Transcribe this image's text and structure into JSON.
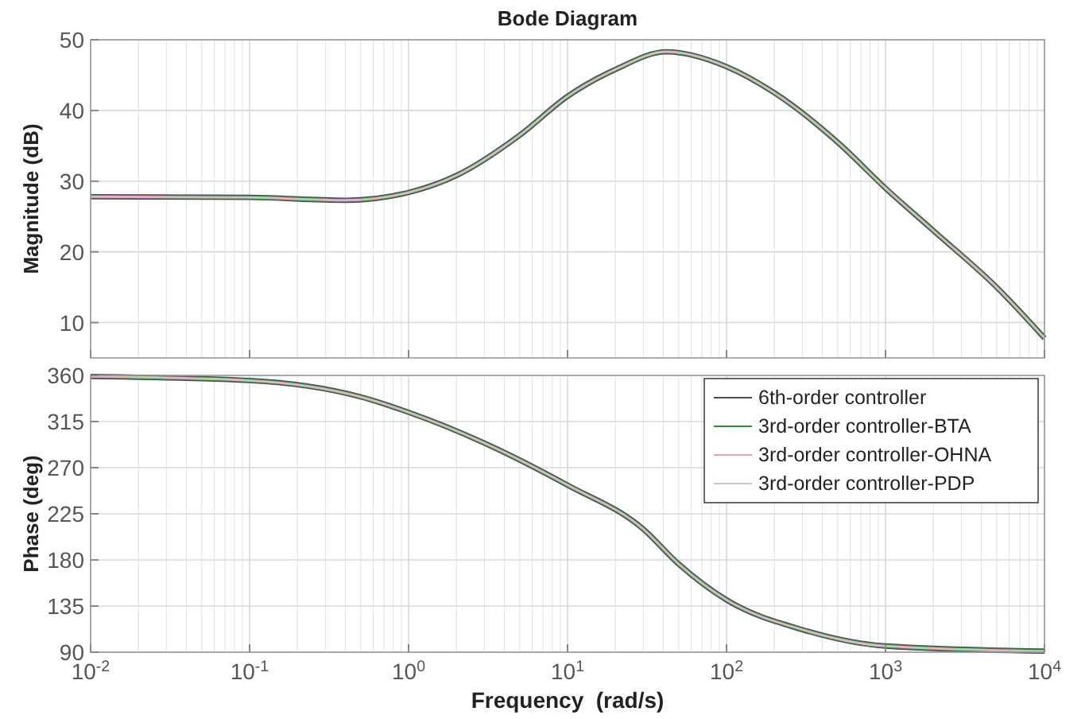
{
  "chart_data": [
    {
      "type": "line",
      "title": "Bode Diagram",
      "ylabel": "Magnitude (dB)",
      "log": "x",
      "grid": true,
      "tick_labels": "y",
      "x": [
        0.01,
        0.1,
        0.4,
        1,
        2,
        5,
        10,
        20,
        42,
        100,
        200,
        500,
        1000,
        2000,
        5000,
        10000
      ],
      "xlim": [
        0.01,
        10000
      ],
      "xticks": [
        {
          "value": 0.01,
          "label": null
        },
        {
          "value": 0.1,
          "label": null
        },
        {
          "value": 1,
          "label": null
        },
        {
          "value": 10,
          "label": null
        },
        {
          "value": 100,
          "label": null
        },
        {
          "value": 1000,
          "label": null
        },
        {
          "value": 10000,
          "label": null
        }
      ],
      "ylim": [
        5,
        50
      ],
      "yticks": [
        10,
        20,
        30,
        40,
        50
      ],
      "series": [
        {
          "color": "#4a4a6a",
          "values": [
            27.8,
            27.7,
            27.3,
            28.4,
            30.8,
            36.5,
            42,
            45.8,
            48.3,
            46.2,
            42.5,
            35.5,
            29,
            23,
            15,
            7.8
          ]
        },
        {
          "color": "#2e8b2e",
          "values": [
            27.8,
            27.7,
            27.3,
            28.4,
            30.8,
            36.5,
            42,
            45.8,
            48.3,
            46.2,
            42.5,
            35.5,
            29,
            23,
            15,
            7.8
          ]
        },
        {
          "color": "#e8a0b0",
          "values": [
            27.8,
            27.7,
            27.3,
            28.4,
            30.8,
            36.5,
            42,
            45.8,
            48.3,
            46.2,
            42.5,
            35.5,
            29,
            23,
            15,
            7.8
          ]
        },
        {
          "color": "#c8c8c8",
          "values": [
            27.8,
            27.7,
            27.3,
            28.4,
            30.8,
            36.5,
            42,
            45.8,
            48.3,
            46.2,
            42.5,
            35.5,
            29,
            23,
            15,
            7.8
          ]
        }
      ]
    },
    {
      "type": "line",
      "xlabel": "Frequency  (rad/s)",
      "ylabel": "Phase (deg)",
      "log": "x",
      "grid": true,
      "legend": "top right",
      "x": [
        0.01,
        0.1,
        0.5,
        1,
        3,
        10,
        30,
        50,
        100,
        300,
        1000,
        10000
      ],
      "xlim": [
        0.01,
        10000
      ],
      "xticks": [
        {
          "value": 0.01,
          "label": "10$^{-2}$"
        },
        {
          "value": 0.1,
          "label": "10$^{-1}$"
        },
        {
          "value": 1,
          "label": "10$^{0}$"
        },
        {
          "value": 10,
          "label": "10$^{1}$"
        },
        {
          "value": 100,
          "label": "10$^{2}$"
        },
        {
          "value": 1000,
          "label": "10$^{3}$"
        },
        {
          "value": 10000,
          "label": "10$^{4}$"
        }
      ],
      "ylim": [
        90,
        360
      ],
      "yticks": [
        90,
        135,
        180,
        225,
        270,
        315,
        360
      ],
      "series": [
        {
          "name": "6th-order controller",
          "color": "#4a4a6a",
          "values": [
            359,
            355,
            339,
            324,
            294,
            253,
            210,
            176,
            141,
            112,
            96,
            91
          ]
        },
        {
          "name": "3rd-order controller-BTA",
          "color": "#2e8b2e",
          "values": [
            359,
            355,
            339,
            324,
            294,
            253,
            210,
            176,
            141,
            112,
            96,
            91
          ]
        },
        {
          "name": "3rd-order controller-OHNA",
          "color": "#e8a0b0",
          "values": [
            359,
            355,
            339,
            324,
            294,
            253,
            210,
            176,
            141,
            112,
            96,
            91
          ]
        },
        {
          "name": "3rd-order controller-PDP",
          "color": "#c8c8c8",
          "values": [
            359,
            355,
            339,
            324,
            294,
            253,
            210,
            176,
            141,
            112,
            96,
            91
          ]
        }
      ]
    }
  ]
}
